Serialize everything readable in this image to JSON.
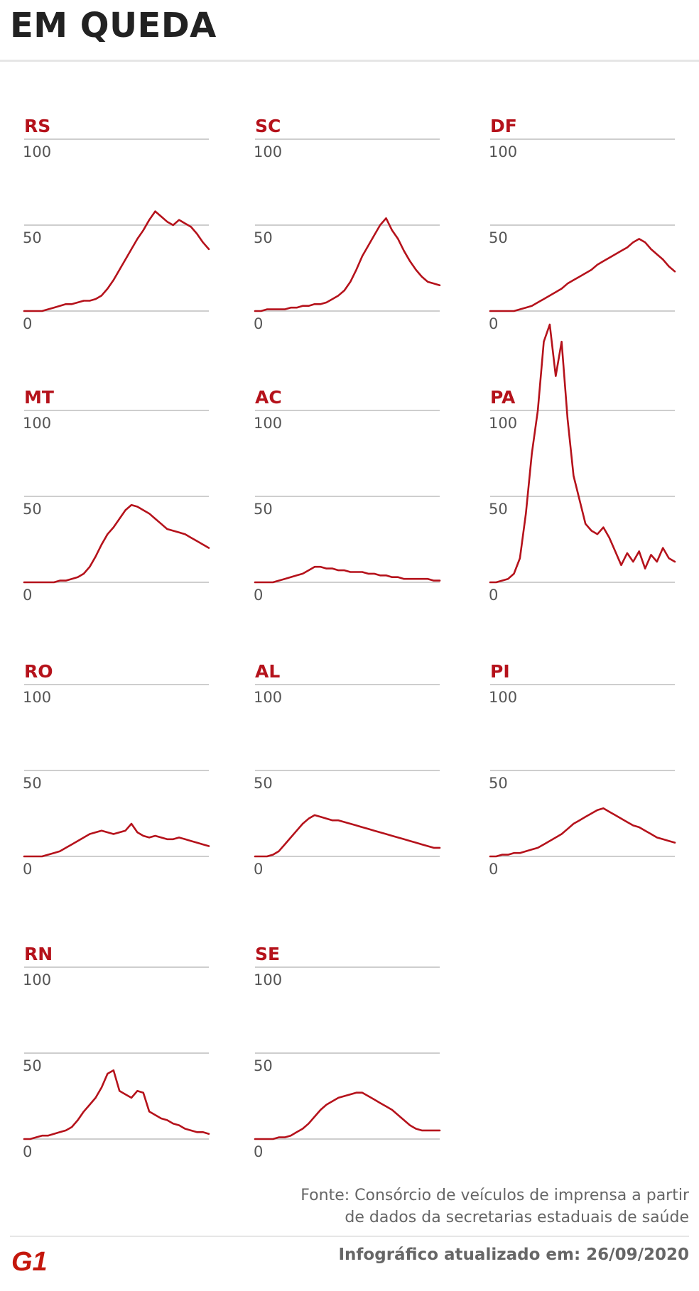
{
  "header": {
    "title": "EM QUEDA"
  },
  "colors": {
    "accent": "#b5121b",
    "gridline": "#bdbdbd",
    "tick_text": "#555555"
  },
  "chart_data": [
    {
      "type": "line",
      "state": "RS",
      "ylim": [
        0,
        100
      ],
      "yticks": [
        "100",
        "50",
        "0"
      ],
      "values": [
        0,
        0,
        0,
        0,
        1,
        2,
        3,
        4,
        4,
        5,
        6,
        6,
        7,
        9,
        13,
        18,
        24,
        30,
        36,
        42,
        47,
        53,
        58,
        55,
        52,
        50,
        53,
        51,
        49,
        45,
        40,
        36
      ]
    },
    {
      "type": "line",
      "state": "SC",
      "ylim": [
        0,
        100
      ],
      "yticks": [
        "100",
        "50",
        "0"
      ],
      "values": [
        0,
        0,
        1,
        1,
        1,
        1,
        2,
        2,
        3,
        3,
        4,
        4,
        5,
        7,
        9,
        12,
        17,
        24,
        32,
        38,
        44,
        50,
        54,
        47,
        42,
        35,
        29,
        24,
        20,
        17,
        16,
        15
      ]
    },
    {
      "type": "line",
      "state": "DF",
      "ylim": [
        0,
        100
      ],
      "yticks": [
        "100",
        "50",
        "0"
      ],
      "values": [
        0,
        0,
        0,
        0,
        0,
        1,
        2,
        3,
        5,
        7,
        9,
        11,
        13,
        16,
        18,
        20,
        22,
        24,
        27,
        29,
        31,
        33,
        35,
        37,
        40,
        42,
        40,
        36,
        33,
        30,
        26,
        23
      ]
    },
    {
      "type": "line",
      "state": "MT",
      "ylim": [
        0,
        100
      ],
      "yticks": [
        "100",
        "50",
        "0"
      ],
      "values": [
        0,
        0,
        0,
        0,
        0,
        0,
        1,
        1,
        2,
        3,
        5,
        9,
        15,
        22,
        28,
        32,
        37,
        42,
        45,
        44,
        42,
        40,
        37,
        34,
        31,
        30,
        29,
        28,
        26,
        24,
        22,
        20
      ]
    },
    {
      "type": "line",
      "state": "AC",
      "ylim": [
        0,
        100
      ],
      "yticks": [
        "100",
        "50",
        "0"
      ],
      "values": [
        0,
        0,
        0,
        0,
        1,
        2,
        3,
        4,
        5,
        7,
        9,
        9,
        8,
        8,
        7,
        7,
        6,
        6,
        6,
        5,
        5,
        4,
        4,
        3,
        3,
        2,
        2,
        2,
        2,
        2,
        1,
        1
      ]
    },
    {
      "type": "line",
      "state": "PA",
      "ylim": [
        0,
        100
      ],
      "yticks": [
        "100",
        "50",
        "0"
      ],
      "values": [
        0,
        0,
        1,
        2,
        5,
        14,
        40,
        75,
        100,
        140,
        150,
        120,
        140,
        95,
        62,
        48,
        34,
        30,
        28,
        32,
        26,
        18,
        10,
        17,
        12,
        18,
        8,
        16,
        12,
        20,
        14,
        12
      ]
    },
    {
      "type": "line",
      "state": "RO",
      "ylim": [
        0,
        100
      ],
      "yticks": [
        "100",
        "50",
        "0"
      ],
      "values": [
        0,
        0,
        0,
        0,
        1,
        2,
        3,
        5,
        7,
        9,
        11,
        13,
        14,
        15,
        14,
        13,
        14,
        15,
        19,
        14,
        12,
        11,
        12,
        11,
        10,
        10,
        11,
        10,
        9,
        8,
        7,
        6
      ]
    },
    {
      "type": "line",
      "state": "AL",
      "ylim": [
        0,
        100
      ],
      "yticks": [
        "100",
        "50",
        "0"
      ],
      "values": [
        0,
        0,
        0,
        1,
        3,
        7,
        11,
        15,
        19,
        22,
        24,
        23,
        22,
        21,
        21,
        20,
        19,
        18,
        17,
        16,
        15,
        14,
        13,
        12,
        11,
        10,
        9,
        8,
        7,
        6,
        5,
        5
      ]
    },
    {
      "type": "line",
      "state": "PI",
      "ylim": [
        0,
        100
      ],
      "yticks": [
        "100",
        "50",
        "0"
      ],
      "values": [
        0,
        0,
        1,
        1,
        2,
        2,
        3,
        4,
        5,
        7,
        9,
        11,
        13,
        16,
        19,
        21,
        23,
        25,
        27,
        28,
        26,
        24,
        22,
        20,
        18,
        17,
        15,
        13,
        11,
        10,
        9,
        8
      ]
    },
    {
      "type": "line",
      "state": "RN",
      "ylim": [
        0,
        100
      ],
      "yticks": [
        "100",
        "50",
        "0"
      ],
      "values": [
        0,
        0,
        1,
        2,
        2,
        3,
        4,
        5,
        7,
        11,
        16,
        20,
        24,
        30,
        38,
        40,
        28,
        26,
        24,
        28,
        27,
        16,
        14,
        12,
        11,
        9,
        8,
        6,
        5,
        4,
        4,
        3
      ]
    },
    {
      "type": "line",
      "state": "SE",
      "ylim": [
        0,
        100
      ],
      "yticks": [
        "100",
        "50",
        "0"
      ],
      "values": [
        0,
        0,
        0,
        0,
        1,
        1,
        2,
        4,
        6,
        9,
        13,
        17,
        20,
        22,
        24,
        25,
        26,
        27,
        27,
        25,
        23,
        21,
        19,
        17,
        14,
        11,
        8,
        6,
        5,
        5,
        5,
        5
      ]
    }
  ],
  "footer": {
    "source_line1": "Fonte: Consórcio de veículos de imprensa a partir",
    "source_line2": "de dados da secretarias estaduais de saúde",
    "updated": "Infográfico atualizado em: 26/09/2020",
    "logo_text": "G1"
  }
}
